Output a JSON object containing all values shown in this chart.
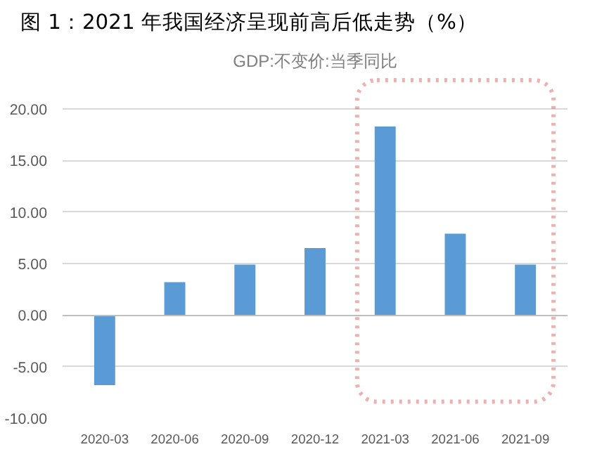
{
  "chart_data": {
    "type": "bar",
    "title": "图 1：2021 年我国经济呈现前高后低走势（%）",
    "subtitle": "GDP:不变价:当季同比",
    "categories": [
      "2020-03",
      "2020-06",
      "2020-09",
      "2020-12",
      "2021-03",
      "2021-06",
      "2021-09"
    ],
    "values": [
      -6.8,
      3.2,
      4.9,
      6.5,
      18.3,
      7.9,
      4.9
    ],
    "color": "#5b9bd5",
    "ylim": [
      -10,
      23
    ],
    "yticks": [
      {
        "value": -10,
        "label": "-10.00"
      },
      {
        "value": -5,
        "label": "-5.00"
      },
      {
        "value": 0,
        "label": "0.00"
      },
      {
        "value": 5,
        "label": "5.00"
      },
      {
        "value": 10,
        "label": "10.00"
      },
      {
        "value": 15,
        "label": "15.00"
      },
      {
        "value": 20,
        "label": "20.00"
      }
    ],
    "grid": "y"
  }
}
